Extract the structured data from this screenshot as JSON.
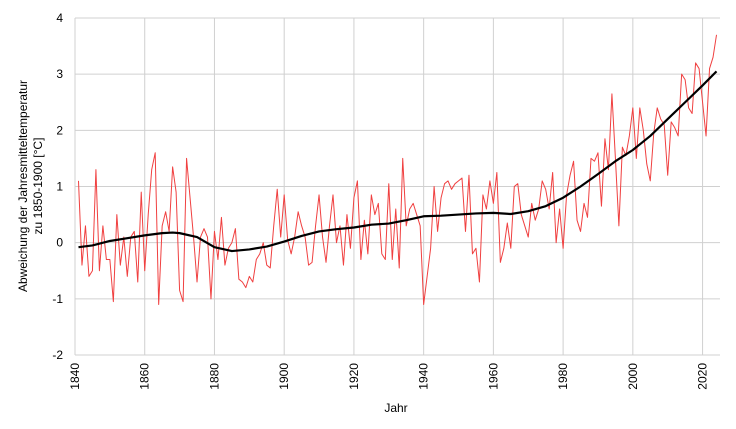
{
  "chart_data": {
    "type": "line",
    "xlabel": "Jahr",
    "ylabel": [
      "Abweichung der Jahresmitteltemperatur",
      "zu 1850-1900 [°C]"
    ],
    "xlim": [
      1840,
      2025
    ],
    "xticks": [
      1840,
      1860,
      1880,
      1900,
      1920,
      1940,
      1960,
      1980,
      2000,
      2020
    ],
    "ylim": [
      -2,
      4
    ],
    "yticks": [
      -2,
      -1,
      0,
      1,
      2,
      3,
      4
    ],
    "grid": true,
    "series": [
      {
        "color": "#f04040",
        "width": 1,
        "x": [
          1841,
          1842,
          1843,
          1844,
          1845,
          1846,
          1847,
          1848,
          1849,
          1850,
          1851,
          1852,
          1853,
          1854,
          1855,
          1856,
          1857,
          1858,
          1859,
          1860,
          1861,
          1862,
          1863,
          1864,
          1865,
          1866,
          1867,
          1868,
          1869,
          1870,
          1871,
          1872,
          1873,
          1874,
          1875,
          1876,
          1877,
          1878,
          1879,
          1880,
          1881,
          1882,
          1883,
          1884,
          1885,
          1886,
          1887,
          1888,
          1889,
          1890,
          1891,
          1892,
          1893,
          1894,
          1895,
          1896,
          1897,
          1898,
          1899,
          1900,
          1901,
          1902,
          1903,
          1904,
          1905,
          1906,
          1907,
          1908,
          1909,
          1910,
          1911,
          1912,
          1913,
          1914,
          1915,
          1916,
          1917,
          1918,
          1919,
          1920,
          1921,
          1922,
          1923,
          1924,
          1925,
          1926,
          1927,
          1928,
          1929,
          1930,
          1931,
          1932,
          1933,
          1934,
          1935,
          1936,
          1937,
          1938,
          1939,
          1940,
          1941,
          1942,
          1943,
          1944,
          1945,
          1946,
          1947,
          1948,
          1949,
          1950,
          1951,
          1952,
          1953,
          1954,
          1955,
          1956,
          1957,
          1958,
          1959,
          1960,
          1961,
          1962,
          1963,
          1964,
          1965,
          1966,
          1967,
          1968,
          1969,
          1970,
          1971,
          1972,
          1973,
          1974,
          1975,
          1976,
          1977,
          1978,
          1979,
          1980,
          1981,
          1982,
          1983,
          1984,
          1985,
          1986,
          1987,
          1988,
          1989,
          1990,
          1991,
          1992,
          1993,
          1994,
          1995,
          1996,
          1997,
          1998,
          1999,
          2000,
          2001,
          2002,
          2003,
          2004,
          2005,
          2006,
          2007,
          2008,
          2009,
          2010,
          2011,
          2012,
          2013,
          2014,
          2015,
          2016,
          2017,
          2018,
          2019,
          2020,
          2021,
          2022,
          2023,
          2024
        ],
        "values": [
          1.1,
          -0.4,
          0.3,
          -0.6,
          -0.5,
          1.3,
          -0.5,
          0.3,
          -0.3,
          -0.3,
          -1.05,
          0.5,
          -0.4,
          0.1,
          -0.6,
          0.1,
          0.2,
          -0.7,
          0.9,
          -0.5,
          0.5,
          1.3,
          1.6,
          -1.1,
          0.3,
          0.55,
          0.2,
          1.35,
          0.9,
          -0.85,
          -1.05,
          1.5,
          0.8,
          0.1,
          -0.7,
          0.1,
          0.25,
          0.1,
          -1.0,
          0.2,
          -0.3,
          0.45,
          -0.4,
          -0.1,
          0.0,
          0.25,
          -0.65,
          -0.7,
          -0.8,
          -0.6,
          -0.7,
          -0.3,
          -0.2,
          0.0,
          -0.4,
          -0.45,
          0.3,
          0.95,
          0.1,
          0.85,
          0.05,
          -0.2,
          0.1,
          0.55,
          0.3,
          0.1,
          -0.4,
          -0.35,
          0.3,
          0.85,
          0.1,
          -0.35,
          0.3,
          0.85,
          0.0,
          0.3,
          -0.4,
          0.5,
          -0.1,
          0.8,
          1.1,
          -0.3,
          0.4,
          -0.2,
          0.85,
          0.5,
          0.7,
          -0.2,
          -0.3,
          1.05,
          -0.3,
          0.6,
          -0.45,
          1.5,
          0.3,
          0.6,
          0.7,
          0.5,
          0.3,
          -1.1,
          -0.6,
          -0.1,
          1.0,
          0.2,
          0.8,
          1.05,
          1.1,
          0.95,
          1.05,
          1.1,
          1.15,
          0.2,
          1.2,
          -0.2,
          -0.1,
          -0.7,
          0.85,
          0.6,
          1.1,
          0.7,
          1.25,
          -0.35,
          -0.1,
          0.35,
          -0.1,
          1.0,
          1.05,
          0.5,
          0.3,
          0.1,
          0.7,
          0.4,
          0.6,
          1.1,
          0.95,
          0.6,
          1.25,
          0.0,
          0.6,
          -0.1,
          0.85,
          1.2,
          1.45,
          0.4,
          0.2,
          0.7,
          0.45,
          1.5,
          1.45,
          1.6,
          0.65,
          1.85,
          1.3,
          2.65,
          1.5,
          0.3,
          1.7,
          1.55,
          1.9,
          2.4,
          1.5,
          2.4,
          2.0,
          1.4,
          1.1,
          1.95,
          2.4,
          2.2,
          2.1,
          1.2,
          2.15,
          2.05,
          1.9,
          3.0,
          2.9,
          2.4,
          2.3,
          3.2,
          3.1,
          2.5,
          1.9,
          3.1,
          3.3,
          3.7
        ]
      },
      {
        "color": "#000000",
        "width": 2.2,
        "x": [
          1841,
          1845,
          1850,
          1855,
          1860,
          1865,
          1868,
          1870,
          1875,
          1880,
          1885,
          1890,
          1895,
          1900,
          1905,
          1910,
          1915,
          1920,
          1925,
          1930,
          1935,
          1940,
          1945,
          1950,
          1955,
          1960,
          1965,
          1970,
          1975,
          1980,
          1985,
          1990,
          1995,
          2000,
          2005,
          2010,
          2015,
          2020,
          2024
        ],
        "values": [
          -0.08,
          -0.05,
          0.03,
          0.08,
          0.13,
          0.17,
          0.18,
          0.17,
          0.1,
          -0.08,
          -0.15,
          -0.12,
          -0.07,
          0.02,
          0.12,
          0.2,
          0.24,
          0.27,
          0.32,
          0.34,
          0.4,
          0.47,
          0.48,
          0.5,
          0.52,
          0.53,
          0.51,
          0.56,
          0.65,
          0.8,
          1.0,
          1.22,
          1.45,
          1.65,
          1.9,
          2.2,
          2.5,
          2.8,
          3.05
        ]
      }
    ]
  }
}
